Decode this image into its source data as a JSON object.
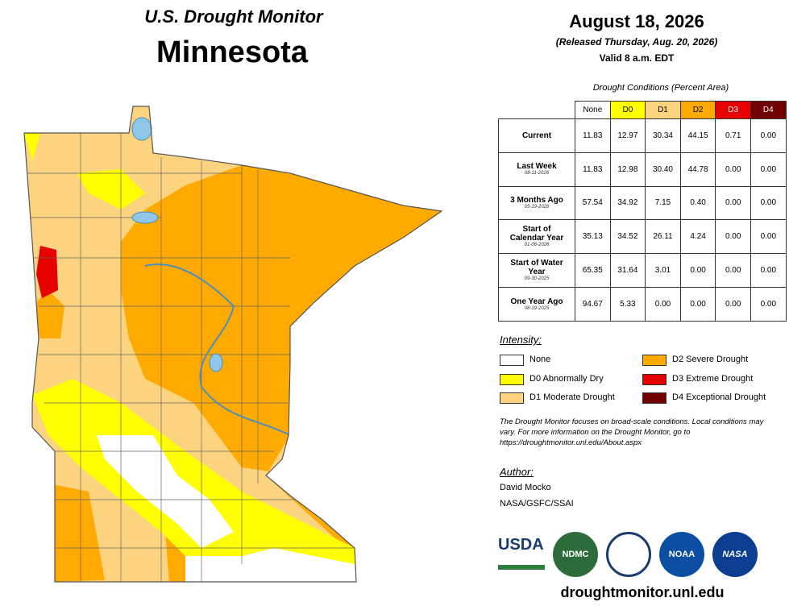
{
  "header": {
    "program": "U.S. Drought Monitor",
    "state": "Minnesota",
    "date": "August 18, 2026",
    "released": "(Released Thursday, Aug. 20, 2026)",
    "valid": "Valid 8 a.m. EDT"
  },
  "table": {
    "caption": "Drought Conditions (Percent Area)",
    "columns": [
      "None",
      "D0",
      "D1",
      "D2",
      "D3",
      "D4"
    ],
    "rows": [
      {
        "label": "Current",
        "values": [
          "11.83",
          "12.97",
          "30.34",
          "44.15",
          "0.71",
          "0.00"
        ]
      },
      {
        "label": "Last Week",
        "date": "08-11-2026",
        "values": [
          "11.83",
          "12.98",
          "30.40",
          "44.78",
          "0.00",
          "0.00"
        ]
      },
      {
        "label": "3 Months Ago",
        "date": "05-19-2026",
        "values": [
          "57.54",
          "34.92",
          "7.15",
          "0.40",
          "0.00",
          "0.00"
        ]
      },
      {
        "label": "Start of Calendar Year",
        "date": "01-06-2026",
        "values": [
          "35.13",
          "34.52",
          "26.11",
          "4.24",
          "0.00",
          "0.00"
        ]
      },
      {
        "label": "Start of Water Year",
        "date": "09-30-2025",
        "values": [
          "65.35",
          "31.64",
          "3.01",
          "0.00",
          "0.00",
          "0.00"
        ]
      },
      {
        "label": "One Year Ago",
        "date": "08-19-2025",
        "values": [
          "94.67",
          "5.33",
          "0.00",
          "0.00",
          "0.00",
          "0.00"
        ]
      }
    ]
  },
  "legend": {
    "title": "Intensity:",
    "items": [
      {
        "label": "None",
        "color": "#ffffff"
      },
      {
        "label": "D0 Abnormally Dry",
        "color": "#ffff00"
      },
      {
        "label": "D1 Moderate Drought",
        "color": "#fcd37f"
      },
      {
        "label": "D2 Severe Drought",
        "color": "#ffaa00"
      },
      {
        "label": "D3 Extreme Drought",
        "color": "#e60000"
      },
      {
        "label": "D4 Exceptional Drought",
        "color": "#730000"
      }
    ]
  },
  "note": "The Drought Monitor focuses on broad-scale conditions. Local conditions may vary. For more information on the Drought Monitor, go to https://droughtmonitor.unl.edu/About.aspx",
  "author": {
    "title": "Author:",
    "name": "David Mocko",
    "affiliation": "NASA/GSFC/SSAI"
  },
  "logos": [
    "USDA",
    "NDMC",
    "NOAA",
    "NASA"
  ],
  "footer": "droughtmonitor.unl.edu"
}
